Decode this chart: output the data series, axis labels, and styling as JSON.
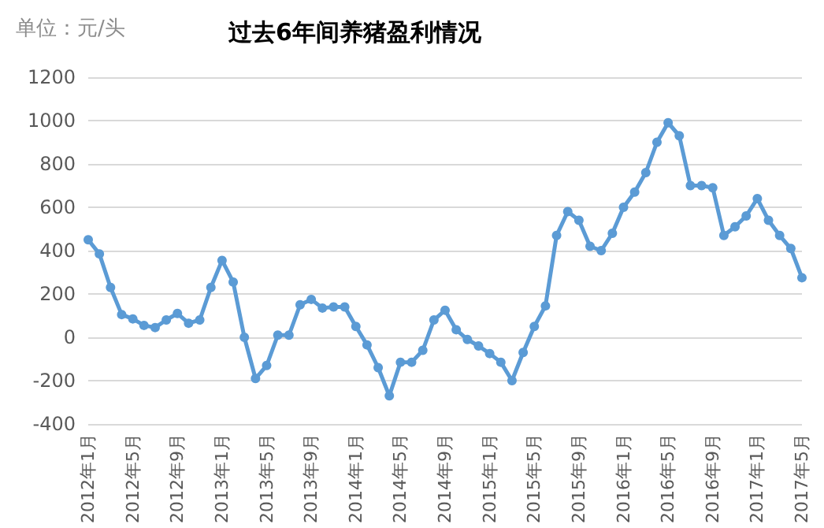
{
  "chart_data": {
    "type": "line",
    "title": "过去6年间养猪盈利情况",
    "annotations": [
      "单位：元/头"
    ],
    "categories": [
      "2012年1月",
      null,
      null,
      null,
      "2012年5月",
      null,
      null,
      null,
      "2012年9月",
      null,
      null,
      null,
      "2013年1月",
      null,
      null,
      null,
      "2013年5月",
      null,
      null,
      null,
      "2013年9月",
      null,
      null,
      null,
      "2014年1月",
      null,
      null,
      null,
      "2014年5月",
      null,
      null,
      null,
      "2014年9月",
      null,
      null,
      null,
      "2015年1月",
      null,
      null,
      null,
      "2015年5月",
      null,
      null,
      null,
      "2015年9月",
      null,
      null,
      null,
      "2016年1月",
      null,
      null,
      null,
      "2016年5月",
      null,
      null,
      null,
      "2016年9月",
      null,
      null,
      null,
      "2017年1月",
      null,
      null,
      null,
      "2017年5月"
    ],
    "series": [
      {
        "color": "#5b9bd5",
        "values": [
          450,
          385,
          230,
          105,
          85,
          55,
          45,
          80,
          110,
          65,
          80,
          230,
          355,
          255,
          0,
          -190,
          -130,
          10,
          10,
          150,
          175,
          135,
          140,
          140,
          50,
          -35,
          -140,
          -270,
          -115,
          -115,
          -60,
          80,
          125,
          35,
          -10,
          -40,
          -75,
          -115,
          -200,
          -70,
          50,
          145,
          470,
          580,
          540,
          420,
          400,
          480,
          600,
          670,
          760,
          900,
          990,
          930,
          700,
          700,
          690,
          470,
          510,
          560,
          640,
          540,
          470,
          410,
          275
        ]
      }
    ],
    "ylim": [
      -400,
      1200
    ],
    "yticks": [
      -400,
      -200,
      0,
      200,
      400,
      600,
      800,
      1000,
      1200
    ],
    "grid": "y",
    "marker": "circle",
    "line_style": "solid"
  }
}
